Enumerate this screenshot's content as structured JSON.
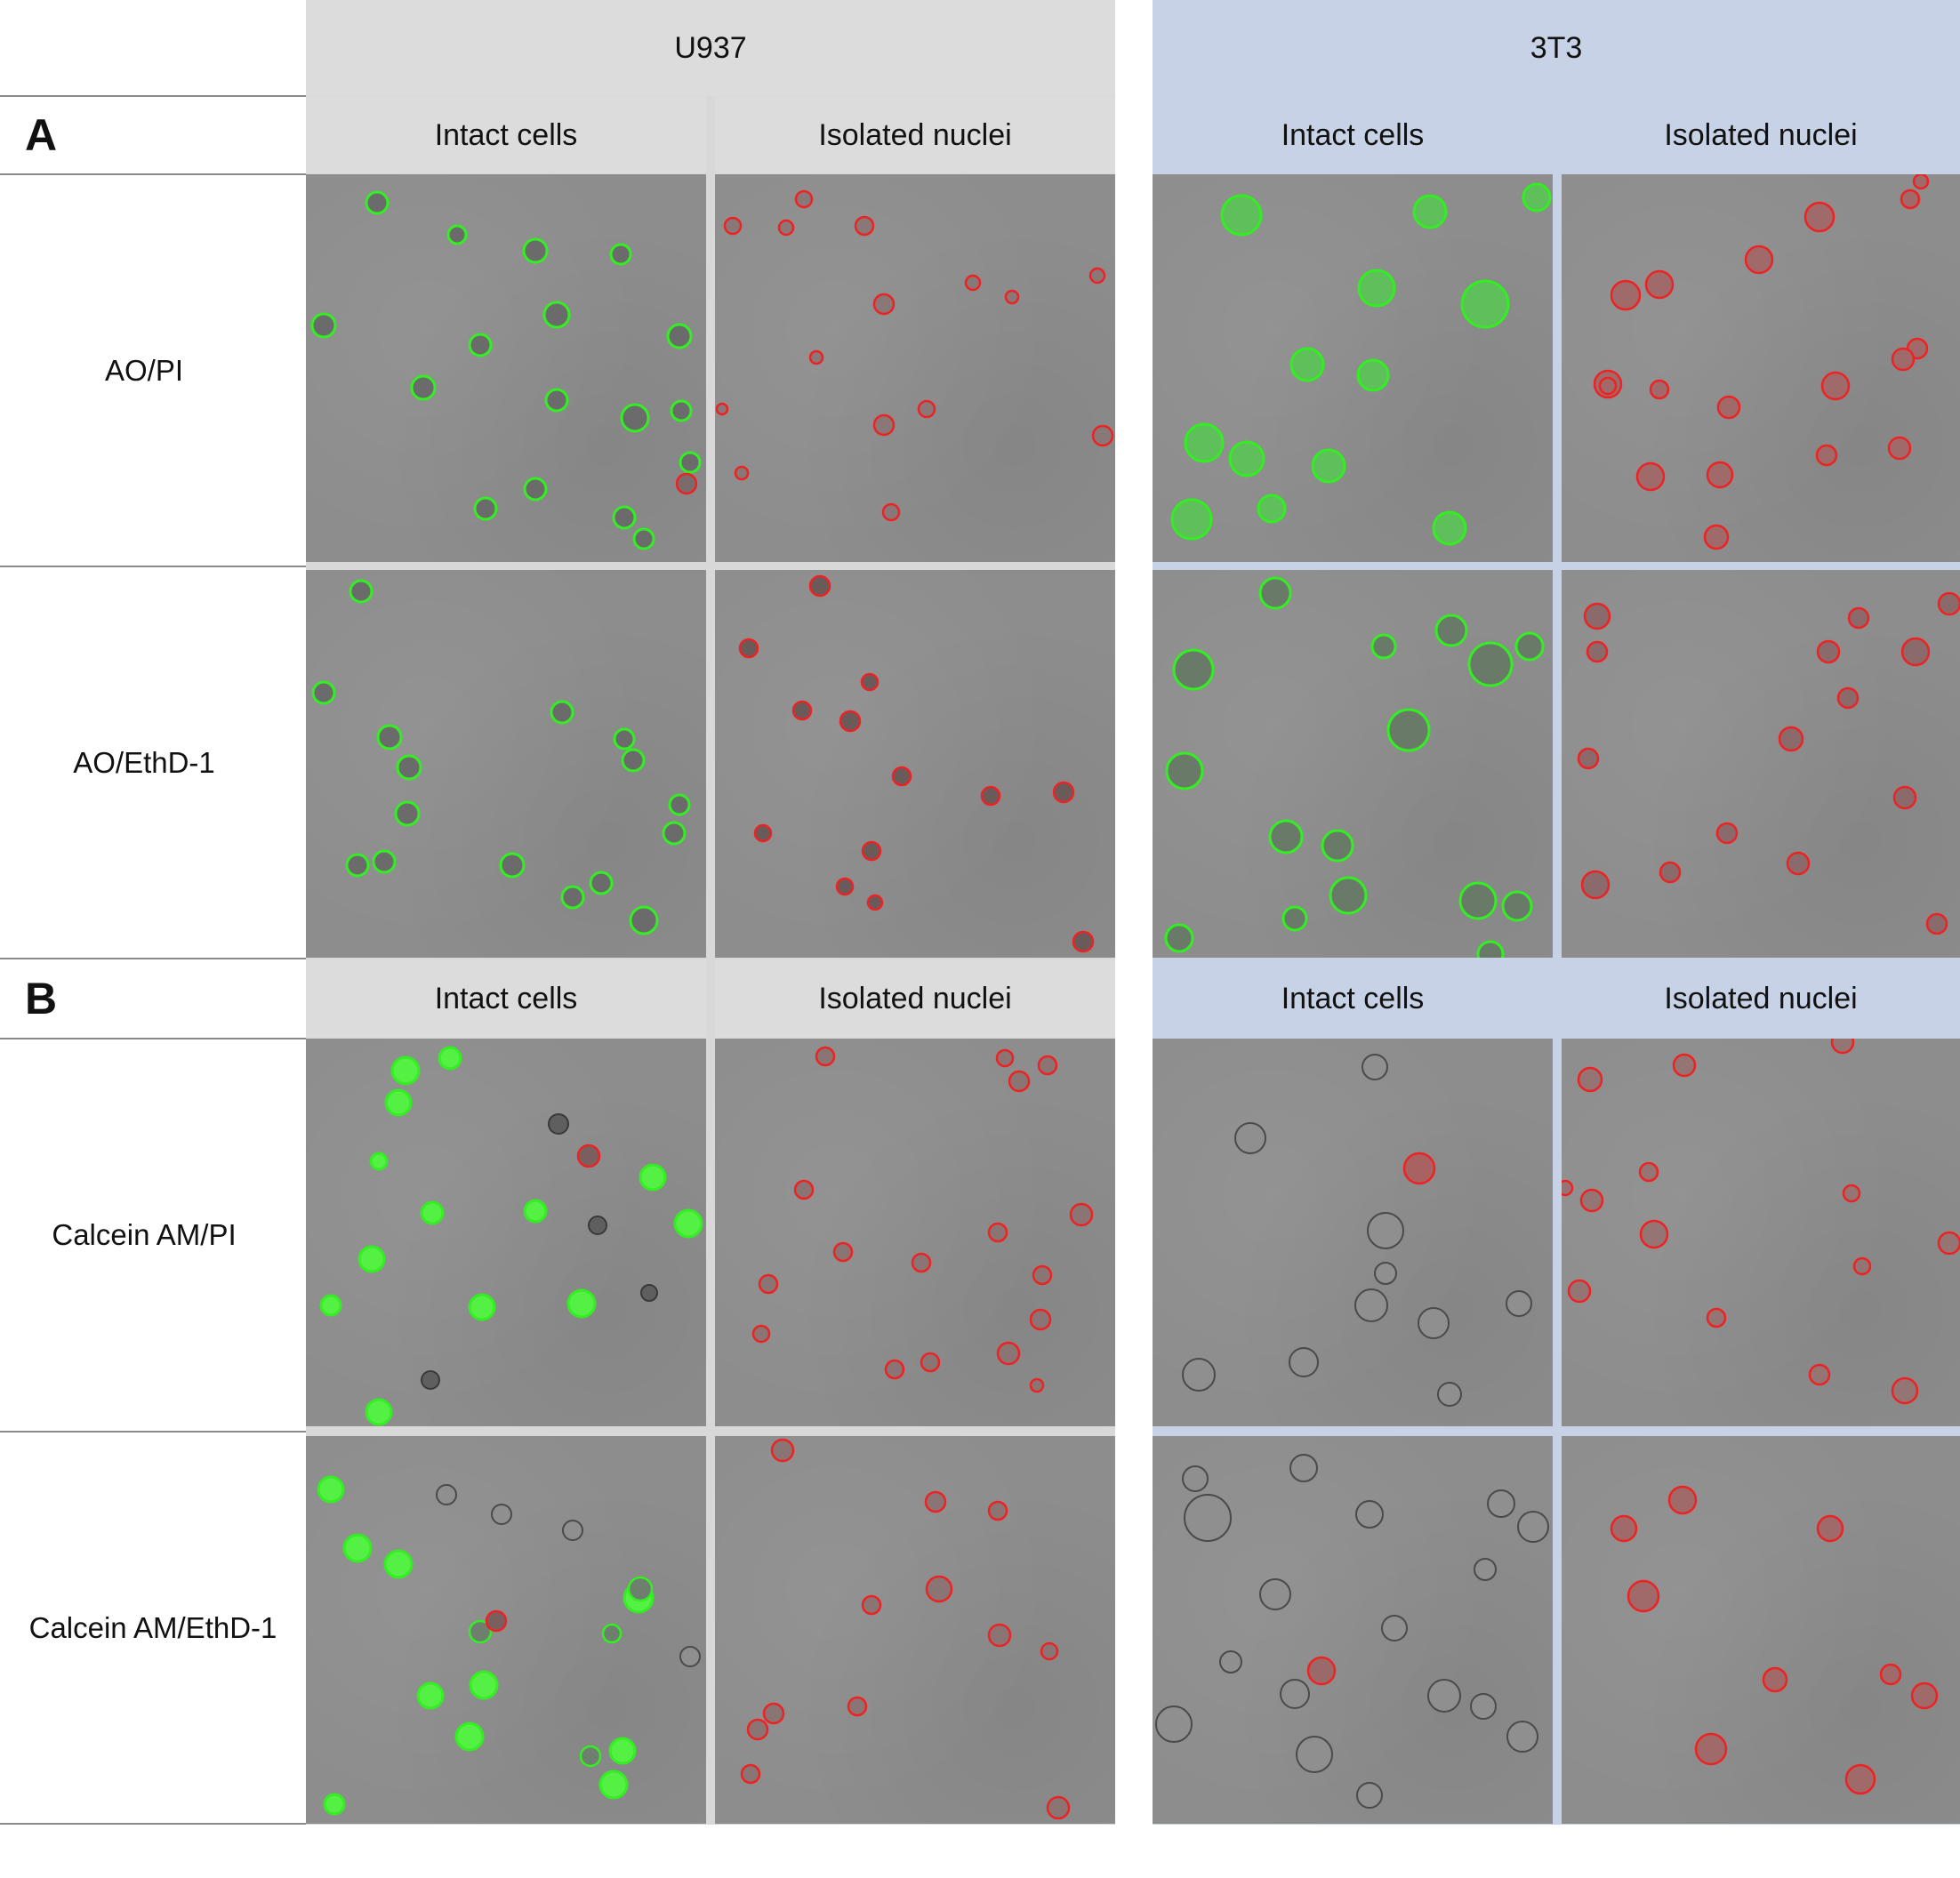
{
  "cell_lines": {
    "u937": "U937",
    "t3t3": "3T3"
  },
  "subheaders": {
    "intact": "Intact cells",
    "nuclei": "Isolated nuclei"
  },
  "sections": {
    "a": "A",
    "b": "B"
  },
  "rows": {
    "r1": "AO/PI",
    "r2": "AO/EthD-1",
    "r3": "Calcein AM/PI",
    "r4": "Calcein AM/EthD-1"
  },
  "colors": {
    "header_u937": "#dcdcdc",
    "header_3t3": "#c7d2e6",
    "panel_gray": "#8d8d8d",
    "live_ring": "#33ee22",
    "dead_ring": "#ee2222"
  }
}
